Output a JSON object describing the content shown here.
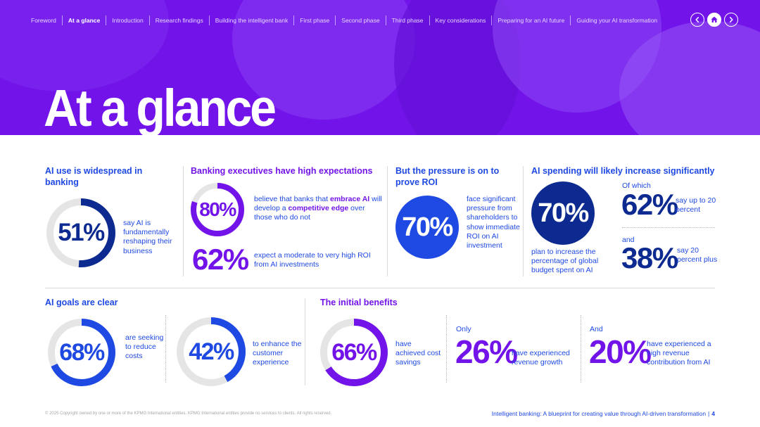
{
  "nav": {
    "items": [
      "Foreword",
      "At a glance",
      "Introduction",
      "Research findings",
      "Building the intelligent bank",
      "First phase",
      "Second phase",
      "Third phase",
      "Key considerations",
      "Preparing for an AI future",
      "Guiding your AI transformation"
    ],
    "active_index": 1,
    "controls": [
      "chevron-left-icon",
      "home-icon",
      "chevron-right-icon"
    ]
  },
  "hero": {
    "title": "At a glance"
  },
  "colors": {
    "blue": "#1e49e2",
    "dark_blue": "#0c2a8f",
    "purple": "#7213ea",
    "ring_track": "#e5e5e5"
  },
  "sec1": {
    "title": "AI use is widespread in banking",
    "stat": "51%",
    "fraction": 0.51,
    "text": "say AI is fundamentally reshaping their business"
  },
  "sec2": {
    "title": "Banking executives have high expectations",
    "stat1": "80%",
    "fraction1": 0.8,
    "text1_a": "believe that banks that ",
    "text1_b": "embrace AI",
    "text1_c": " will develop a ",
    "text1_d": "competitive edge",
    "text1_e": " over those who do not",
    "stat2": "62%",
    "text2": "expect a moderate to very high ROI from AI investments"
  },
  "sec3": {
    "title": "But the pressure is on to prove ROI",
    "stat": "70%",
    "text": "face significant pressure from shareholders to show immediate ROI on AI investment"
  },
  "sec4": {
    "title": "AI spending will likely increase significantly",
    "stat": "70%",
    "text": "plan to increase the percentage of global budget spent on AI",
    "of_which": "Of which",
    "stat_a": "62%",
    "text_a": "say up to 20 percent",
    "and": "and",
    "stat_b": "38%",
    "text_b": "say 20 percent plus"
  },
  "sec5": {
    "title": "AI goals are clear",
    "stat1": "68%",
    "fraction1": 0.68,
    "text1": "are seeking to reduce costs",
    "stat2": "42%",
    "fraction2": 0.42,
    "text2": "to enhance the customer experience"
  },
  "sec6": {
    "title": "The initial benefits",
    "stat1": "66%",
    "fraction1": 0.66,
    "text1": "have achieved cost savings",
    "prefix2": "Only",
    "stat2": "26%",
    "text2": "have experienced revenue growth",
    "prefix3": "And",
    "stat3": "20%",
    "text3": "have experienced a high revenue contribution from AI"
  },
  "footer": {
    "copyright": "© 2025 Copyright owned by one or more of the KPMG International entities. KPMG International entities provide no services to clients. All rights reserved.",
    "doc_title": "Intelligent banking: A blueprint for creating value through AI-driven transformation",
    "separator": "|",
    "page": "4"
  }
}
